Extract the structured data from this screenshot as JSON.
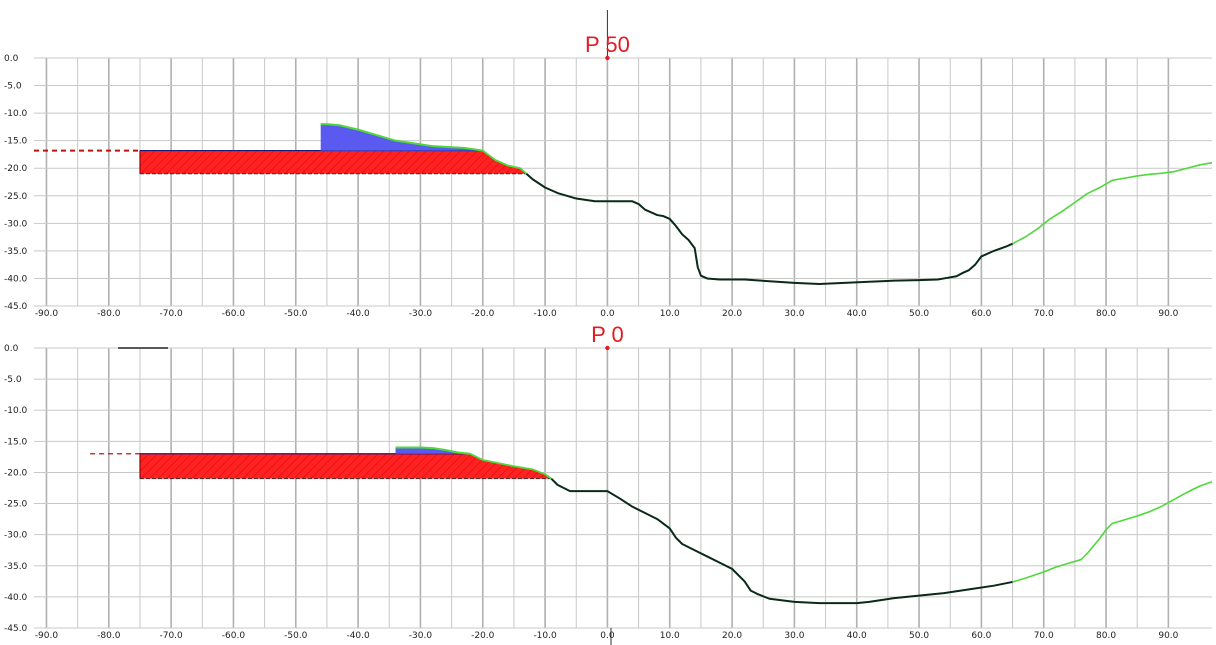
{
  "colors": {
    "grid": "#c8c8c8",
    "terrain": "#0a2a18",
    "terrain_green": "#4fd83a",
    "fill_red": "#ff2222",
    "fill_blue": "#5a5af0",
    "title_red": "#e31b23",
    "dashed_red": "#c01010"
  },
  "chart_data": [
    {
      "type": "line",
      "title": "P 50",
      "xlim": [
        -92,
        97
      ],
      "ylim": [
        -45,
        0
      ],
      "x_ticks": [
        -90,
        -80,
        -70,
        -60,
        -50,
        -40,
        -30,
        -20,
        -10,
        0,
        10,
        20,
        30,
        40,
        50,
        60,
        70,
        80,
        90
      ],
      "x_tick_labels": [
        "-90.0",
        "-80.0",
        "-70.0",
        "-60.0",
        "-50.0",
        "-40.0",
        "-30.0",
        "-20.0",
        "-10.0",
        "0.0",
        "10.0",
        "20.0",
        "30.0",
        "40.0",
        "50.0",
        "60.0",
        "70.0",
        "80.0",
        "90.0"
      ],
      "y_ticks": [
        0,
        -5,
        -10,
        -15,
        -20,
        -25,
        -30,
        -35,
        -40,
        -45
      ],
      "y_tick_labels": [
        "0.0",
        "-5.0",
        "-10.0",
        "-15.0",
        "-20.0",
        "-25.0",
        "-30.0",
        "-35.0",
        "-40.0",
        "-45.0"
      ],
      "grid": true,
      "series": [
        {
          "values_x": [
            -13,
            -12,
            -10,
            -8,
            -5,
            -2,
            0,
            2,
            3,
            4,
            5,
            6,
            8,
            9,
            10,
            11,
            12,
            13,
            14,
            14.5,
            15,
            16,
            18,
            22,
            26,
            30,
            34,
            38,
            42,
            46,
            50,
            53,
            54,
            56,
            57,
            58,
            59,
            60,
            62,
            64,
            65
          ],
          "values_y": [
            -21,
            -22,
            -23.5,
            -24.5,
            -25.5,
            -26,
            -26,
            -26,
            -26,
            -26,
            -26.5,
            -27.5,
            -28.5,
            -28.7,
            -29.2,
            -30.5,
            -32,
            -33,
            -34.5,
            -38,
            -39.5,
            -40,
            -40.2,
            -40.2,
            -40.5,
            -40.8,
            -41,
            -40.8,
            -40.6,
            -40.4,
            -40.3,
            -40.2,
            -40,
            -39.6,
            -39,
            -38.5,
            -37.5,
            -36,
            -35,
            -34.2,
            -33.7
          ]
        },
        {
          "values_x": [
            65,
            67,
            69,
            71,
            73,
            75,
            77,
            79,
            81,
            83,
            85,
            87,
            89,
            91,
            93,
            95,
            97
          ],
          "values_y": [
            -33.7,
            -32.5,
            -31,
            -29.2,
            -27.8,
            -26.2,
            -24.6,
            -23.5,
            -22.2,
            -21.8,
            -21.4,
            -21.1,
            -20.9,
            -20.6,
            -20,
            -19.4,
            -19
          ]
        }
      ],
      "blue_fill_top": {
        "values_x": [
          -46,
          -45,
          -43,
          -40,
          -37,
          -34,
          -31,
          -28,
          -25,
          -23,
          -20
        ],
        "values_y": [
          -12,
          -12,
          -12.2,
          -13,
          -14,
          -15,
          -15.5,
          -16,
          -16.2,
          -16.3,
          -16.8
        ]
      },
      "red_fill_slope": {
        "values_x": [
          -20,
          -18,
          -16,
          -14,
          -13
        ],
        "values_y": [
          -16.8,
          -18.5,
          -19.5,
          -20,
          -21
        ]
      },
      "red_band": {
        "x_range": [
          -75,
          -20
        ],
        "y_top": -16.8,
        "y_bottom": -21
      },
      "dashed_ref": {
        "x_range": [
          -92,
          -75
        ],
        "y": -16.8
      },
      "marker": {
        "x": 0,
        "y": 0
      }
    },
    {
      "type": "line",
      "title": "P 0",
      "xlim": [
        -92,
        97
      ],
      "ylim": [
        -45,
        0
      ],
      "x_ticks": [
        -90,
        -80,
        -70,
        -60,
        -50,
        -40,
        -30,
        -20,
        -10,
        0,
        10,
        20,
        30,
        40,
        50,
        60,
        70,
        80,
        90
      ],
      "x_tick_labels": [
        "-90.0",
        "-80.0",
        "-70.0",
        "-60.0",
        "-50.0",
        "-40.0",
        "-30.0",
        "-20.0",
        "-10.0",
        "0.0",
        "10.0",
        "20.0",
        "30.0",
        "40.0",
        "50.0",
        "60.0",
        "70.0",
        "80.0",
        "90.0"
      ],
      "y_ticks": [
        0,
        -5,
        -10,
        -15,
        -20,
        -25,
        -30,
        -35,
        -40,
        -45
      ],
      "y_tick_labels": [
        "0.0",
        "-5.0",
        "-10.0",
        "-15.0",
        "-20.0",
        "-25.0",
        "-30.0",
        "-35.0",
        "-40.0",
        "-45.0"
      ],
      "grid": true,
      "series": [
        {
          "values_x": [
            -9,
            -8,
            -6,
            -4,
            -2,
            0,
            2,
            4,
            6,
            8,
            10,
            11,
            12,
            14,
            16,
            18,
            20,
            22,
            23,
            24,
            26,
            30,
            34,
            36,
            38,
            40,
            42,
            44,
            46,
            50,
            54,
            58,
            62,
            65
          ],
          "values_y": [
            -21,
            -22,
            -23,
            -23,
            -23,
            -23,
            -24.2,
            -25.5,
            -26.5,
            -27.5,
            -29,
            -30.5,
            -31.5,
            -32.5,
            -33.5,
            -34.5,
            -35.5,
            -37.5,
            -39,
            -39.5,
            -40.3,
            -40.8,
            -41,
            -41,
            -41,
            -41,
            -40.8,
            -40.5,
            -40.2,
            -39.8,
            -39.4,
            -38.8,
            -38.2,
            -37.6
          ]
        },
        {
          "values_x": [
            65,
            67,
            70,
            72,
            74,
            76,
            77,
            78,
            79,
            80,
            81,
            83,
            85,
            87,
            89,
            91,
            93,
            95,
            97
          ],
          "values_y": [
            -37.6,
            -37,
            -36,
            -35.2,
            -34.6,
            -34,
            -33,
            -31.8,
            -30.6,
            -29.2,
            -28.2,
            -27.6,
            -27,
            -26.3,
            -25.4,
            -24.3,
            -23.2,
            -22.2,
            -21.5
          ]
        }
      ],
      "blue_fill_top": {
        "values_x": [
          -34,
          -33,
          -30,
          -28,
          -26,
          -24,
          -22
        ],
        "values_y": [
          -16,
          -16,
          -16,
          -16.1,
          -16.4,
          -16.8,
          -17
        ]
      },
      "red_fill_slope": {
        "values_x": [
          -22,
          -20,
          -18,
          -15,
          -12,
          -10,
          -9
        ],
        "values_y": [
          -17,
          -18,
          -18.4,
          -19,
          -19.5,
          -20.3,
          -21
        ]
      },
      "red_band": {
        "x_range": [
          -75,
          -22
        ],
        "y_top": -17,
        "y_bottom": -21
      },
      "dashed_ref": {
        "x_range": [
          -83,
          -75
        ],
        "y": -17
      },
      "marker": {
        "x": 0,
        "y": 0
      }
    }
  ]
}
